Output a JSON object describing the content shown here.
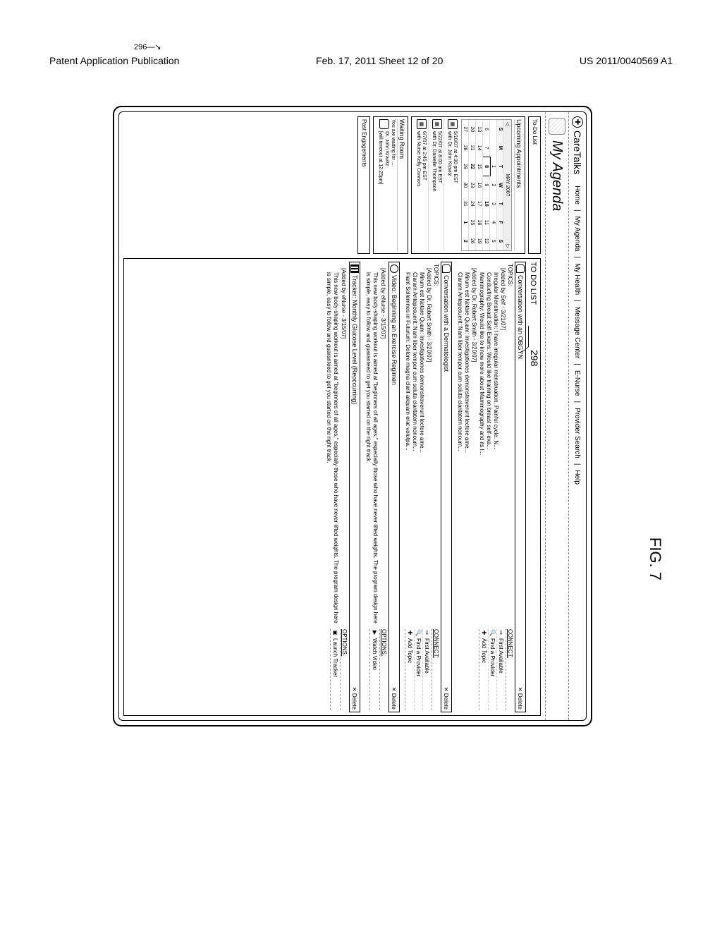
{
  "page": {
    "header_left": "Patent Application Publication",
    "header_center": "Feb. 17, 2011  Sheet 12 of 20",
    "header_right": "US 2011/0040569 A1",
    "figure_ref": "296",
    "figure_label": "FIG. 7"
  },
  "app": {
    "title": "CareTalks",
    "nav": [
      "Home",
      "My Agenda",
      "My Health",
      "Message Center",
      "E-Nurse",
      "Provider Search",
      "Help"
    ],
    "subtitle": "My Agenda",
    "callout": "298"
  },
  "sidebar": {
    "todo_label": "To-Do List",
    "upcoming_label": "Upcoming Appointments",
    "cal_month": "MAY 2007",
    "dow": [
      "S",
      "M",
      "T",
      "W",
      "T",
      "F",
      "S"
    ],
    "cal_rows": [
      [
        "",
        "",
        "1",
        "2",
        "3",
        "4",
        "5"
      ],
      [
        "6",
        "7",
        "8",
        "9",
        "10",
        "11",
        "12"
      ],
      [
        "13",
        "14",
        "15",
        "16",
        "17",
        "18",
        "19"
      ],
      [
        "20",
        "21",
        "22",
        "23",
        "24",
        "25",
        "26"
      ],
      [
        "27",
        "28",
        "29",
        "30",
        "31",
        "1",
        "2"
      ]
    ],
    "appointments": [
      {
        "time": "5/10/07 at 4:30 pm EST",
        "with": "with Dr. John Kravitz"
      },
      {
        "time": "5/22/07 at 8:00 am EST",
        "with": "with Dr. Danielle Thompson"
      },
      {
        "time": "6/7/07 at 2:45 pm EST",
        "with": "with Nurse Kelly Connors"
      }
    ],
    "waiting_label": "Waiting Room",
    "waiting_sub": "You are waiting for ...",
    "waiting_item_name": "Dr. John Kravitz",
    "waiting_item_note": "[will timeout at 12:25pm]",
    "past_label": "Past Engagements"
  },
  "main": {
    "heading": "TO DO LIST",
    "delete_label": "✕ Delete",
    "items": [
      {
        "type": "conversation",
        "title": "Conversation with an OBGYN",
        "topics_label": "TOPICS:",
        "groups": [
          {
            "meta": "[Added by Self - 3/21/07]",
            "lines": [
              "Irregular Menstruation: I have irregular menstruation. Painful cycle. N...",
              "Conducting Breast Self-Exams: Would like training on breast self-exa...",
              "Mammography: Would like to know more about Mammography and its l..."
            ]
          },
          {
            "meta": "[Added by Dr. Robert Smith - 3/20/07]",
            "lines": [
              "Mirum est Notare Quam: Investigationes demonstraverunt lectore ame...",
              "Claram Anteposuerit: Nam liber tempor cum soluta claritatem nonoum..."
            ]
          }
        ],
        "side_label": "CONNECT:",
        "side_opts": [
          {
            "icon": "⇨",
            "label": "First Available"
          },
          {
            "icon": "🔍",
            "label": "Find a Provider"
          },
          {
            "icon": "✚",
            "label": "Add Topic"
          }
        ]
      },
      {
        "type": "conversation",
        "title": "Conversation with a Dermatologist",
        "topics_label": "TOPICS:",
        "groups": [
          {
            "meta": "[Added by Dr. Robert Smith - 3/20/07]",
            "lines": [
              "Mirum est Notare Quam: Investigationes demonstraverunt lectore ame...",
              "Claram Anteposuerit: Nam liber tempor cum soluta claritatem nonoum...",
              "Fiant Sollemnes in Futurum: Dolore magna clarit aliquam erat volutpa..."
            ]
          }
        ],
        "side_label": "CONNECT:",
        "side_opts": [
          {
            "icon": "⇨",
            "label": "First Available"
          },
          {
            "icon": "🔍",
            "label": "Find a Provider"
          },
          {
            "icon": "✚",
            "label": "Add Topic"
          }
        ]
      },
      {
        "type": "video",
        "title": "Video: Beginning an Exercise Regimen",
        "groups": [
          {
            "meta": "[Added by eNurse - 3/15/07]",
            "desc": "This new body-shaping workout is aimed at \"beginners of all ages,\" especially those who have never lifted weights. The program design here is simple, easy to follow and guaranteed to get you started on the right track."
          }
        ],
        "side_label": "OPTIONS:",
        "side_opts": [
          {
            "icon": "▶",
            "label": "Watch Video"
          }
        ]
      },
      {
        "type": "tracker",
        "title": "Tracker: Monthly Glucose Level (Reoccurring)",
        "groups": [
          {
            "meta": "[Added by eNurse - 3/15/07]",
            "desc": "This new body-shaping workout is aimed at \"beginners of all ages,\" especially those who have never lifted weights. The program design here is simple, easy to follow and guaranteed to get you started on the right track."
          }
        ],
        "side_label": "OPTIONS:",
        "side_opts": [
          {
            "icon": "▣",
            "label": "Launch Tracker"
          }
        ]
      }
    ]
  }
}
